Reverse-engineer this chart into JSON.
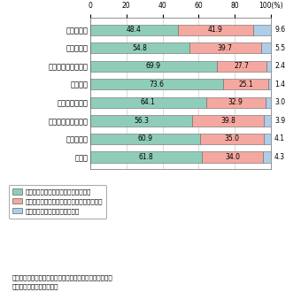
{
  "categories": [
    "書籍・雑誌",
    "音楽・映像",
    "パソコン・周辺機器",
    "生活家電",
    "旅行・チケット",
    "衣類・アクセサリー",
    "食品・飲料",
    "自動車"
  ],
  "val1": [
    48.4,
    54.8,
    69.9,
    73.6,
    64.1,
    56.3,
    60.9,
    61.8
  ],
  "val2": [
    41.9,
    39.7,
    27.7,
    25.1,
    32.9,
    39.8,
    35.0,
    34.0
  ],
  "val3": [
    9.6,
    5.5,
    2.4,
    1.4,
    3.0,
    3.9,
    4.1,
    4.3
  ],
  "color1": "#8fcdba",
  "color2": "#f4a8a0",
  "color3": "#aecde8",
  "legend1": "役に立ち、購入の決め手になっている",
  "legend2": "役に立つが、購入の決め手にはなっていない",
  "legend3": "決定に対して役に立っていない",
  "source_line1": "（出典）「ユビキタスネット社会における情報接触及び消",
  "source_line2": "費行動に関する調査研究」",
  "xticks": [
    0,
    20,
    40,
    60,
    80,
    100
  ]
}
